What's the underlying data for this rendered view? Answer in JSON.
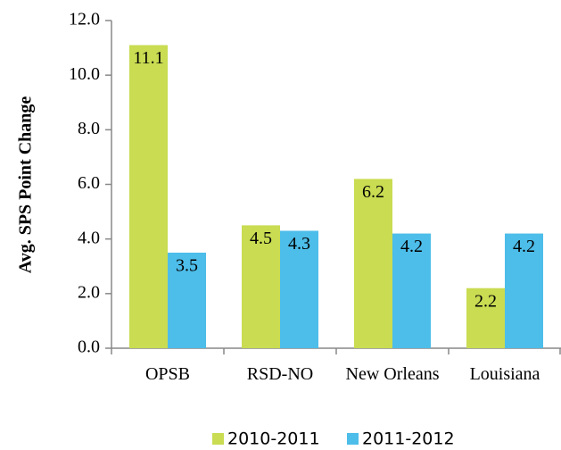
{
  "chart_data": {
    "type": "bar",
    "y_label": "Avg. SPS Point Change",
    "categories": [
      "OPSB",
      "RSD-NO",
      "New Orleans",
      "Louisiana"
    ],
    "series": [
      {
        "name": "2010-2011",
        "color": "#c9dc52",
        "values": [
          11.1,
          4.5,
          6.2,
          2.2
        ]
      },
      {
        "name": "2011-2012",
        "color": "#4dbde9",
        "values": [
          3.5,
          4.3,
          4.2,
          4.2
        ]
      }
    ],
    "ylim": [
      0,
      12
    ],
    "yticks": [
      {
        "value": 0,
        "label": "0.0"
      },
      {
        "value": 2,
        "label": "2.0"
      },
      {
        "value": 4,
        "label": "4.0"
      },
      {
        "value": 6,
        "label": "6.0"
      },
      {
        "value": 8,
        "label": "8.0"
      },
      {
        "value": 10,
        "label": "10.0"
      },
      {
        "value": 12,
        "label": "12.0"
      }
    ],
    "grid": false,
    "legend": "bottom"
  }
}
